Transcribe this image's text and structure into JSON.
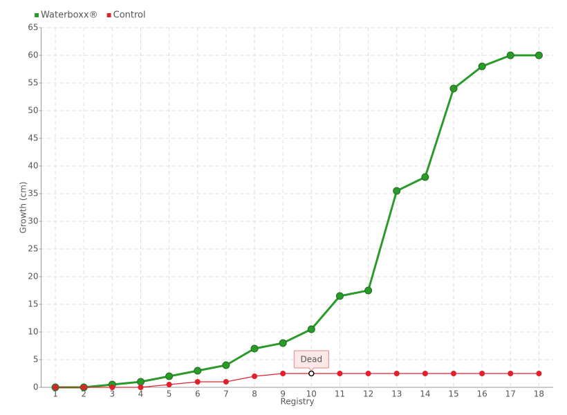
{
  "chart_data": {
    "type": "line",
    "xlabel": "Registry",
    "ylabel": "Growth (cm)",
    "categories": [
      "1",
      "2",
      "3",
      "4",
      "5",
      "6",
      "7",
      "8",
      "9",
      "10",
      "11",
      "12",
      "13",
      "14",
      "15",
      "16",
      "17",
      "18"
    ],
    "series": [
      {
        "name": "Waterboxx®",
        "color": "#2a9a2a",
        "values": [
          0,
          0,
          0.5,
          1,
          2,
          3,
          4,
          7,
          8,
          10.5,
          16.5,
          17.5,
          35.5,
          38,
          54,
          58,
          60,
          60
        ]
      },
      {
        "name": "Control",
        "color": "#e0202a",
        "values": [
          0,
          0,
          0,
          0,
          0.5,
          1,
          1,
          2,
          2.5,
          2.5,
          2.5,
          2.5,
          2.5,
          2.5,
          2.5,
          2.5,
          2.5,
          2.5
        ]
      }
    ],
    "annotations": [
      {
        "text": "Dead",
        "series": "Control",
        "x": "10"
      }
    ],
    "ylim": [
      0,
      65
    ],
    "yticks": [
      0,
      5,
      10,
      15,
      20,
      25,
      30,
      35,
      40,
      45,
      50,
      55,
      60,
      65
    ],
    "grid": true,
    "legend": "top-left"
  }
}
